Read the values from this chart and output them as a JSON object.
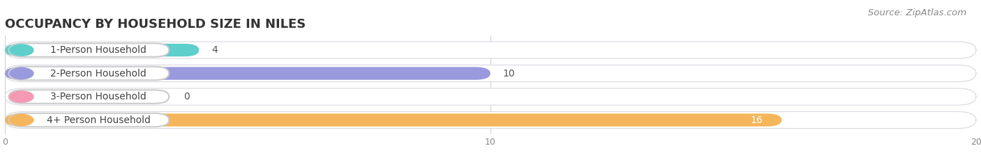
{
  "title": "OCCUPANCY BY HOUSEHOLD SIZE IN NILES",
  "source": "Source: ZipAtlas.com",
  "categories": [
    "1-Person Household",
    "2-Person Household",
    "3-Person Household",
    "4+ Person Household"
  ],
  "values": [
    4,
    10,
    0,
    16
  ],
  "bar_colors": [
    "#5ecfca",
    "#9999dd",
    "#f599b4",
    "#f5b55a"
  ],
  "xlim": [
    0,
    20
  ],
  "xticks": [
    0,
    10,
    20
  ],
  "background_color": "#ffffff",
  "bar_bg_color": "#ebebf0",
  "title_fontsize": 13,
  "source_fontsize": 9.5,
  "label_fontsize": 10,
  "value_fontsize": 10
}
